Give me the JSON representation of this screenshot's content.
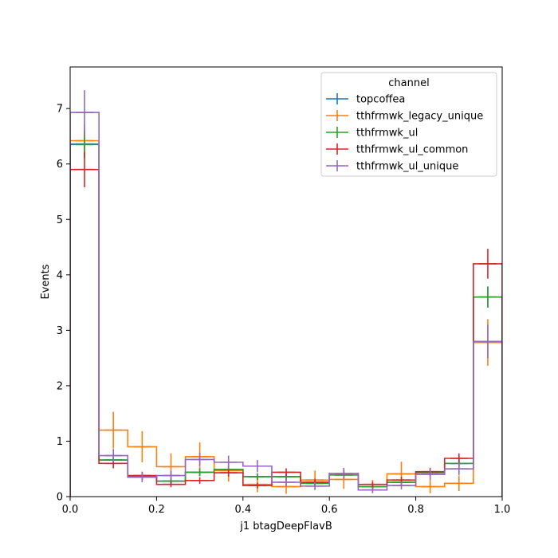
{
  "chart_data": {
    "type": "histogram-step",
    "xlabel": "j1 btagDeepFlavB",
    "ylabel": "Events",
    "xlim": [
      0,
      1
    ],
    "ylim": [
      0,
      7.75
    ],
    "xticks": [
      "0.0",
      "0.2",
      "0.4",
      "0.6",
      "0.8",
      "1.0"
    ],
    "yticks": [
      "0",
      "1",
      "2",
      "3",
      "4",
      "5",
      "6",
      "7"
    ],
    "legend": {
      "title": "channel",
      "placement": "top-right"
    },
    "bin_edges": [
      0,
      0.0667,
      0.1333,
      0.2,
      0.2667,
      0.3333,
      0.4,
      0.4667,
      0.5333,
      0.6,
      0.6667,
      0.7333,
      0.8,
      0.8667,
      0.9333,
      1.0
    ],
    "series": [
      {
        "name": "topcoffea",
        "color": "#1f77b4",
        "values": [
          6.36,
          0.66,
          0.36,
          0.28,
          0.44,
          0.49,
          0.36,
          0.36,
          0.24,
          0.39,
          0.18,
          0.26,
          0.43,
          0.6,
          3.6
        ],
        "errors": [
          0.25,
          0.08,
          0.06,
          0.05,
          0.07,
          0.07,
          0.06,
          0.06,
          0.05,
          0.06,
          0.04,
          0.05,
          0.07,
          0.08,
          0.19
        ]
      },
      {
        "name": "tthfrmwk_legacy_unique",
        "color": "#ff7f0e",
        "values": [
          6.42,
          1.2,
          0.9,
          0.54,
          0.72,
          0.47,
          0.22,
          0.18,
          0.3,
          0.31,
          0.18,
          0.41,
          0.18,
          0.24,
          2.78
        ],
        "errors": [
          0.3,
          0.33,
          0.28,
          0.24,
          0.26,
          0.2,
          0.14,
          0.13,
          0.17,
          0.17,
          0.12,
          0.22,
          0.12,
          0.14,
          0.42
        ]
      },
      {
        "name": "tthfrmwk_ul",
        "color": "#2ca02c",
        "values": [
          6.35,
          0.66,
          0.36,
          0.28,
          0.44,
          0.49,
          0.36,
          0.36,
          0.24,
          0.39,
          0.18,
          0.26,
          0.43,
          0.6,
          3.6
        ],
        "errors": [
          0.25,
          0.08,
          0.06,
          0.05,
          0.07,
          0.07,
          0.06,
          0.06,
          0.05,
          0.06,
          0.04,
          0.05,
          0.07,
          0.08,
          0.19
        ]
      },
      {
        "name": "tthfrmwk_ul_common",
        "color": "#d62728",
        "values": [
          5.9,
          0.6,
          0.38,
          0.22,
          0.29,
          0.43,
          0.2,
          0.44,
          0.26,
          0.42,
          0.22,
          0.3,
          0.45,
          0.69,
          4.2
        ],
        "errors": [
          0.32,
          0.09,
          0.07,
          0.05,
          0.06,
          0.07,
          0.05,
          0.07,
          0.06,
          0.07,
          0.05,
          0.06,
          0.07,
          0.09,
          0.27
        ]
      },
      {
        "name": "tthfrmwk_ul_unique",
        "color": "#9467bd",
        "values": [
          6.93,
          0.74,
          0.35,
          0.38,
          0.67,
          0.62,
          0.55,
          0.26,
          0.19,
          0.42,
          0.12,
          0.2,
          0.4,
          0.5,
          2.8
        ],
        "errors": [
          0.4,
          0.12,
          0.09,
          0.09,
          0.12,
          0.12,
          0.11,
          0.08,
          0.07,
          0.1,
          0.05,
          0.07,
          0.1,
          0.11,
          0.3
        ]
      }
    ]
  }
}
